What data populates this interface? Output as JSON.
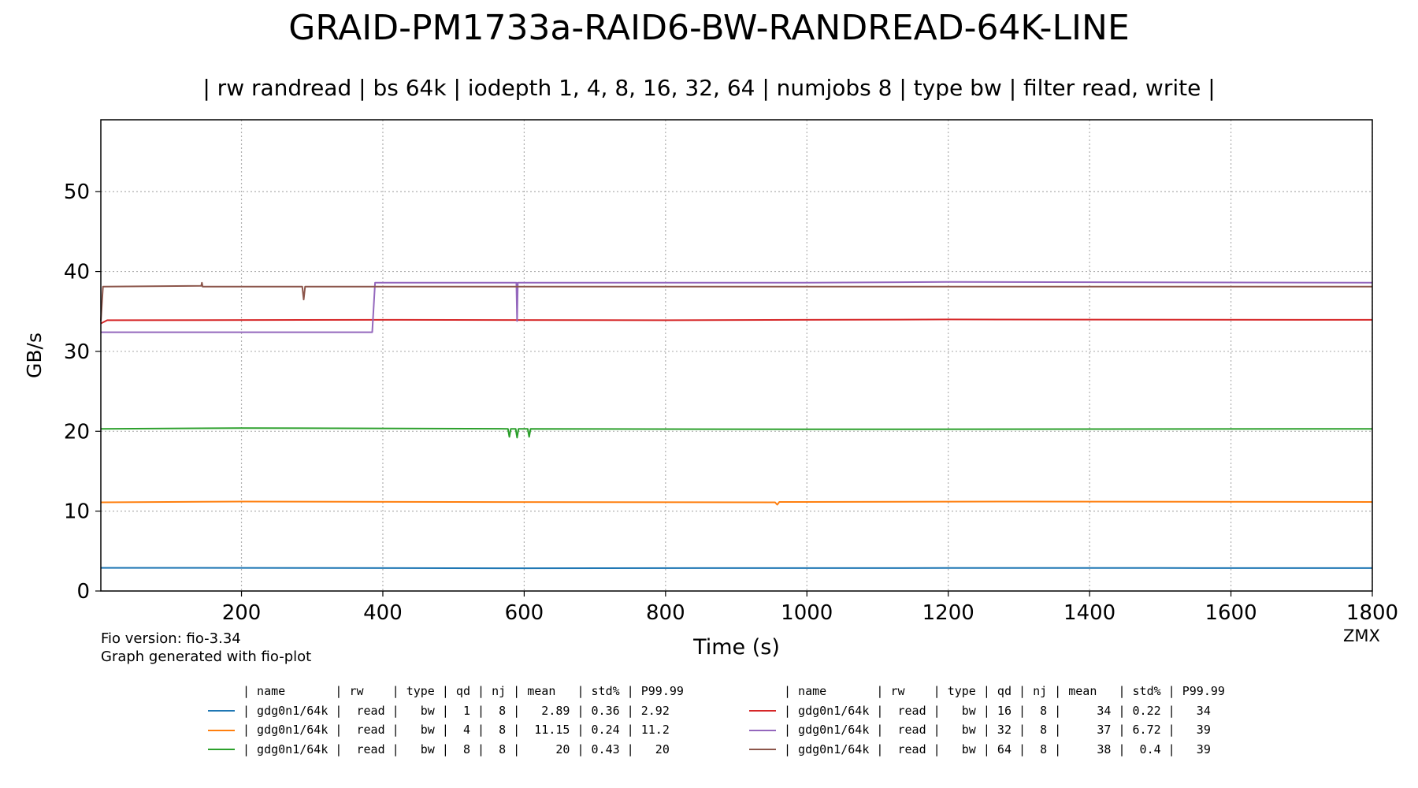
{
  "chart_data": {
    "type": "line",
    "title": "GRAID-PM1733a-RAID6-BW-RANDREAD-64K-LINE",
    "subtitle": "| rw randread | bs 64k | iodepth 1, 4, 8, 16, 32, 64 | numjobs 8 | type bw | filter read, write |",
    "xlabel": "Time (s)",
    "ylabel": "GB/s",
    "xlim": [
      1,
      1800
    ],
    "ylim": [
      0,
      59
    ],
    "xticks": [
      200,
      400,
      600,
      800,
      1000,
      1200,
      1400,
      1600,
      1800
    ],
    "yticks": [
      0,
      10,
      20,
      30,
      40,
      50
    ],
    "grid": true,
    "grid_style": "dotted",
    "legend_placement": "bottom, two columns",
    "series": [
      {
        "qd": 1,
        "color": "#1f77b4",
        "points": [
          [
            1,
            2.9
          ],
          [
            300,
            2.89
          ],
          [
            590,
            2.85
          ],
          [
            900,
            2.87
          ],
          [
            1200,
            2.88
          ],
          [
            1500,
            2.88
          ],
          [
            1800,
            2.87
          ]
        ]
      },
      {
        "qd": 4,
        "color": "#ff7f0e",
        "points": [
          [
            1,
            11.1
          ],
          [
            200,
            11.2
          ],
          [
            500,
            11.15
          ],
          [
            955,
            11.1
          ],
          [
            958,
            10.8
          ],
          [
            961,
            11.15
          ],
          [
            1300,
            11.2
          ],
          [
            1800,
            11.15
          ]
        ]
      },
      {
        "qd": 8,
        "color": "#2ca02c",
        "points": [
          [
            1,
            20.3
          ],
          [
            200,
            20.4
          ],
          [
            577,
            20.3
          ],
          [
            579,
            19.3
          ],
          [
            581,
            20.3
          ],
          [
            588,
            20.3
          ],
          [
            590,
            19.2
          ],
          [
            592,
            20.3
          ],
          [
            605,
            20.3
          ],
          [
            607,
            19.3
          ],
          [
            609,
            20.3
          ],
          [
            1000,
            20.25
          ],
          [
            1800,
            20.3
          ]
        ]
      },
      {
        "qd": 16,
        "color": "#d62728",
        "points": [
          [
            1,
            33.5
          ],
          [
            10,
            33.9
          ],
          [
            400,
            33.95
          ],
          [
            800,
            33.9
          ],
          [
            1200,
            34.0
          ],
          [
            1800,
            33.95
          ]
        ]
      },
      {
        "qd": 32,
        "color": "#9467bd",
        "points": [
          [
            1,
            32.4
          ],
          [
            380,
            32.4
          ],
          [
            385,
            32.4
          ],
          [
            389,
            38.6
          ],
          [
            589,
            38.6
          ],
          [
            590,
            33.8
          ],
          [
            591,
            38.6
          ],
          [
            1000,
            38.6
          ],
          [
            1200,
            38.7
          ],
          [
            1800,
            38.6
          ]
        ]
      },
      {
        "qd": 64,
        "color": "#8c564b",
        "points": [
          [
            1,
            33.8
          ],
          [
            4,
            38.1
          ],
          [
            143,
            38.2
          ],
          [
            144,
            38.6
          ],
          [
            145,
            38.1
          ],
          [
            286,
            38.1
          ],
          [
            288,
            36.5
          ],
          [
            290,
            38.1
          ],
          [
            600,
            38.1
          ],
          [
            1200,
            38.1
          ],
          [
            1800,
            38.1
          ]
        ]
      }
    ]
  },
  "notes": {
    "fio_version": "Fio version: fio-3.34",
    "generator": "Graph generated with fio-plot",
    "credit": "ZMX"
  },
  "legend": {
    "header": "| name       | rw    | type | qd | nj | mean   | std% | P99.99",
    "left": [
      {
        "color": "#1f77b4",
        "text": "| gdg0n1/64k |  read |   bw |  1 |  8 |   2.89 | 0.36 | 2.92"
      },
      {
        "color": "#ff7f0e",
        "text": "| gdg0n1/64k |  read |   bw |  4 |  8 |  11.15 | 0.24 | 11.2"
      },
      {
        "color": "#2ca02c",
        "text": "| gdg0n1/64k |  read |   bw |  8 |  8 |     20 | 0.43 |   20"
      }
    ],
    "right": [
      {
        "color": "#d62728",
        "text": "| gdg0n1/64k |  read |   bw | 16 |  8 |     34 | 0.22 |   34"
      },
      {
        "color": "#9467bd",
        "text": "| gdg0n1/64k |  read |   bw | 32 |  8 |     37 | 6.72 |   39"
      },
      {
        "color": "#8c564b",
        "text": "| gdg0n1/64k |  read |   bw | 64 |  8 |     38 |  0.4 |   39"
      }
    ]
  }
}
